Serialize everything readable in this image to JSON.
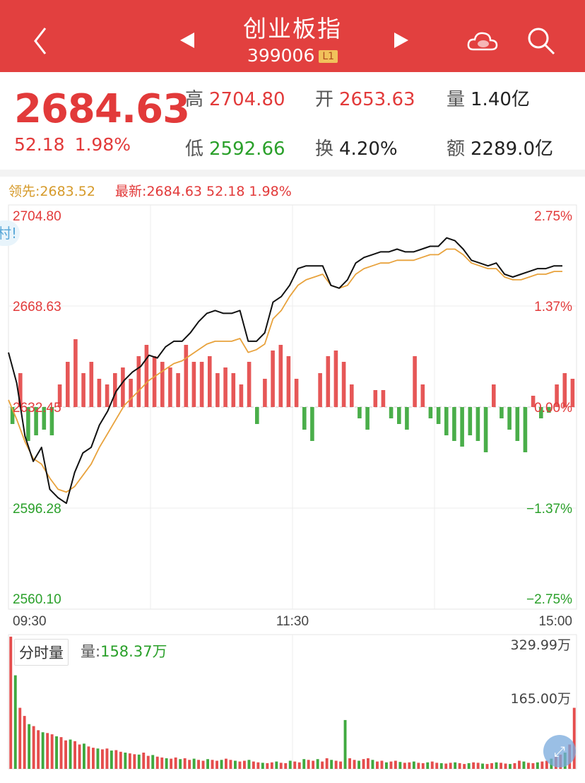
{
  "header": {
    "title": "创业板指",
    "code": "399006",
    "level_badge": "L1",
    "icons": [
      "back-icon",
      "prev-arrow-icon",
      "next-arrow-icon",
      "cloud-icon",
      "search-icon"
    ]
  },
  "quote": {
    "last_price": "2684.63",
    "change": "52.18",
    "change_pct": "1.98%",
    "high_label": "高",
    "high": "2704.80",
    "open_label": "开",
    "open": "2653.63",
    "volume_label": "量",
    "volume": "1.40亿",
    "low_label": "低",
    "low": "2592.66",
    "turnover_label": "换",
    "turnover": "4.20%",
    "amount_label": "额",
    "amount": "2289.0亿"
  },
  "legend": {
    "leading_label": "领先:",
    "leading_value": "2683.52",
    "latest_label": "最新:",
    "latest_value": "2684.63",
    "latest_change": "52.18",
    "latest_pct": "1.98%"
  },
  "volume_panel": {
    "button_label": "分时量",
    "vol_label": "量:",
    "vol_value": "158.37万",
    "axis_top": "329.99万",
    "axis_mid": "165.00万"
  },
  "side_tab_text": "村!",
  "colors": {
    "header_bg": "#e2403f",
    "up": "#e23a3a",
    "down": "#2aa02a",
    "leading_line": "#e8a23c",
    "price_line": "#111111"
  },
  "chart_data": {
    "type": "line",
    "title": "",
    "xlabel": "",
    "ylabel": "",
    "x_ticks": [
      "09:30",
      "11:30",
      "15:00"
    ],
    "y_left_ticks": [
      "2704.80",
      "2668.63",
      "2632.45",
      "2596.28",
      "2560.10"
    ],
    "y_right_ticks": [
      "2.75%",
      "1.37%",
      "0.00%",
      "−1.37%",
      "−2.75%"
    ],
    "ylim": [
      2560.1,
      2704.8
    ],
    "prev_close": 2632.45,
    "grid": true,
    "series": [
      {
        "role": "price",
        "color": "#111111",
        "values": [
          2652,
          2641,
          2622,
          2613,
          2618,
          2603,
          2600,
          2598,
          2609,
          2616,
          2618,
          2626,
          2631,
          2638,
          2642,
          2645,
          2647,
          2651,
          2650,
          2654,
          2656,
          2656,
          2659,
          2663,
          2666,
          2667,
          2666,
          2666,
          2667,
          2656,
          2656,
          2659,
          2670,
          2672,
          2676,
          2682,
          2683,
          2683,
          2683,
          2676,
          2675,
          2678,
          2684,
          2686,
          2687,
          2688,
          2688,
          2689,
          2688,
          2688,
          2689,
          2690,
          2690,
          2693,
          2692,
          2689,
          2685,
          2684,
          2683,
          2684,
          2680,
          2679,
          2680,
          2681,
          2682,
          2682,
          2683,
          2683
        ]
      },
      {
        "role": "leading",
        "color": "#e8a23c",
        "values": [
          2635,
          2628,
          2620,
          2614,
          2612,
          2607,
          2603,
          2602,
          2604,
          2608,
          2612,
          2618,
          2623,
          2628,
          2633,
          2636,
          2639,
          2642,
          2644,
          2646,
          2648,
          2649,
          2651,
          2653,
          2655,
          2656,
          2656,
          2656,
          2657,
          2652,
          2653,
          2655,
          2664,
          2667,
          2672,
          2676,
          2678,
          2679,
          2680,
          2676,
          2675,
          2676,
          2680,
          2682,
          2683,
          2684,
          2684,
          2685,
          2685,
          2685,
          2686,
          2687,
          2687,
          2689,
          2689,
          2687,
          2684,
          2683,
          2682,
          2682,
          2679,
          2678,
          2678,
          2679,
          2680,
          2680,
          2681,
          2681
        ]
      },
      {
        "role": "net-flow-bars",
        "values": [
          -0.3,
          0.6,
          -0.6,
          -0.5,
          -0.4,
          -0.5,
          0.4,
          0.8,
          1.2,
          0.6,
          0.8,
          0.5,
          0.4,
          0.6,
          0.7,
          0.5,
          0.9,
          1.1,
          0.9,
          0.8,
          0.7,
          0.6,
          1.1,
          0.8,
          0.8,
          0.9,
          0.6,
          0.7,
          0.6,
          0.4,
          0.8,
          -0.3,
          0.5,
          1.0,
          1.1,
          0.9,
          0.5,
          -0.4,
          -0.6,
          0.6,
          0.9,
          1.0,
          0.8,
          0.4,
          -0.2,
          -0.4,
          0.3,
          0.3,
          -0.2,
          -0.3,
          -0.4,
          0.9,
          0.4,
          -0.2,
          -0.3,
          -0.5,
          -0.6,
          -0.7,
          -0.5,
          -0.6,
          -0.8,
          0.4,
          -0.2,
          -0.4,
          -0.6,
          -0.8,
          0.2,
          -0.2,
          -0.1,
          0.4,
          0.6,
          0.5
        ]
      }
    ]
  },
  "volume_chart": {
    "type": "bar",
    "ylim": [
      0,
      329.99
    ],
    "values": [
      325,
      230,
      150,
      130,
      110,
      105,
      95,
      90,
      88,
      85,
      80,
      78,
      70,
      72,
      68,
      60,
      62,
      55,
      52,
      50,
      48,
      50,
      45,
      46,
      42,
      40,
      38,
      36,
      35,
      40,
      32,
      34,
      30,
      28,
      26,
      25,
      28,
      24,
      26,
      22,
      25,
      22,
      20,
      24,
      22,
      20,
      22,
      25,
      22,
      20,
      18,
      20,
      22,
      18,
      16,
      15,
      14,
      16,
      18,
      15,
      14,
      20,
      18,
      16,
      24,
      22,
      20,
      24,
      18,
      26,
      22,
      20,
      18,
      120,
      26,
      22,
      20,
      24,
      26,
      22,
      18,
      20,
      16,
      18,
      20,
      17,
      15,
      16,
      18,
      15,
      14,
      16,
      18,
      15,
      14,
      13,
      15,
      16,
      14,
      12,
      14,
      16,
      15,
      13,
      12,
      14,
      16,
      15,
      13,
      12,
      14,
      20,
      18,
      15,
      14,
      16,
      18,
      20,
      25,
      30,
      35,
      40,
      60,
      150
    ]
  }
}
